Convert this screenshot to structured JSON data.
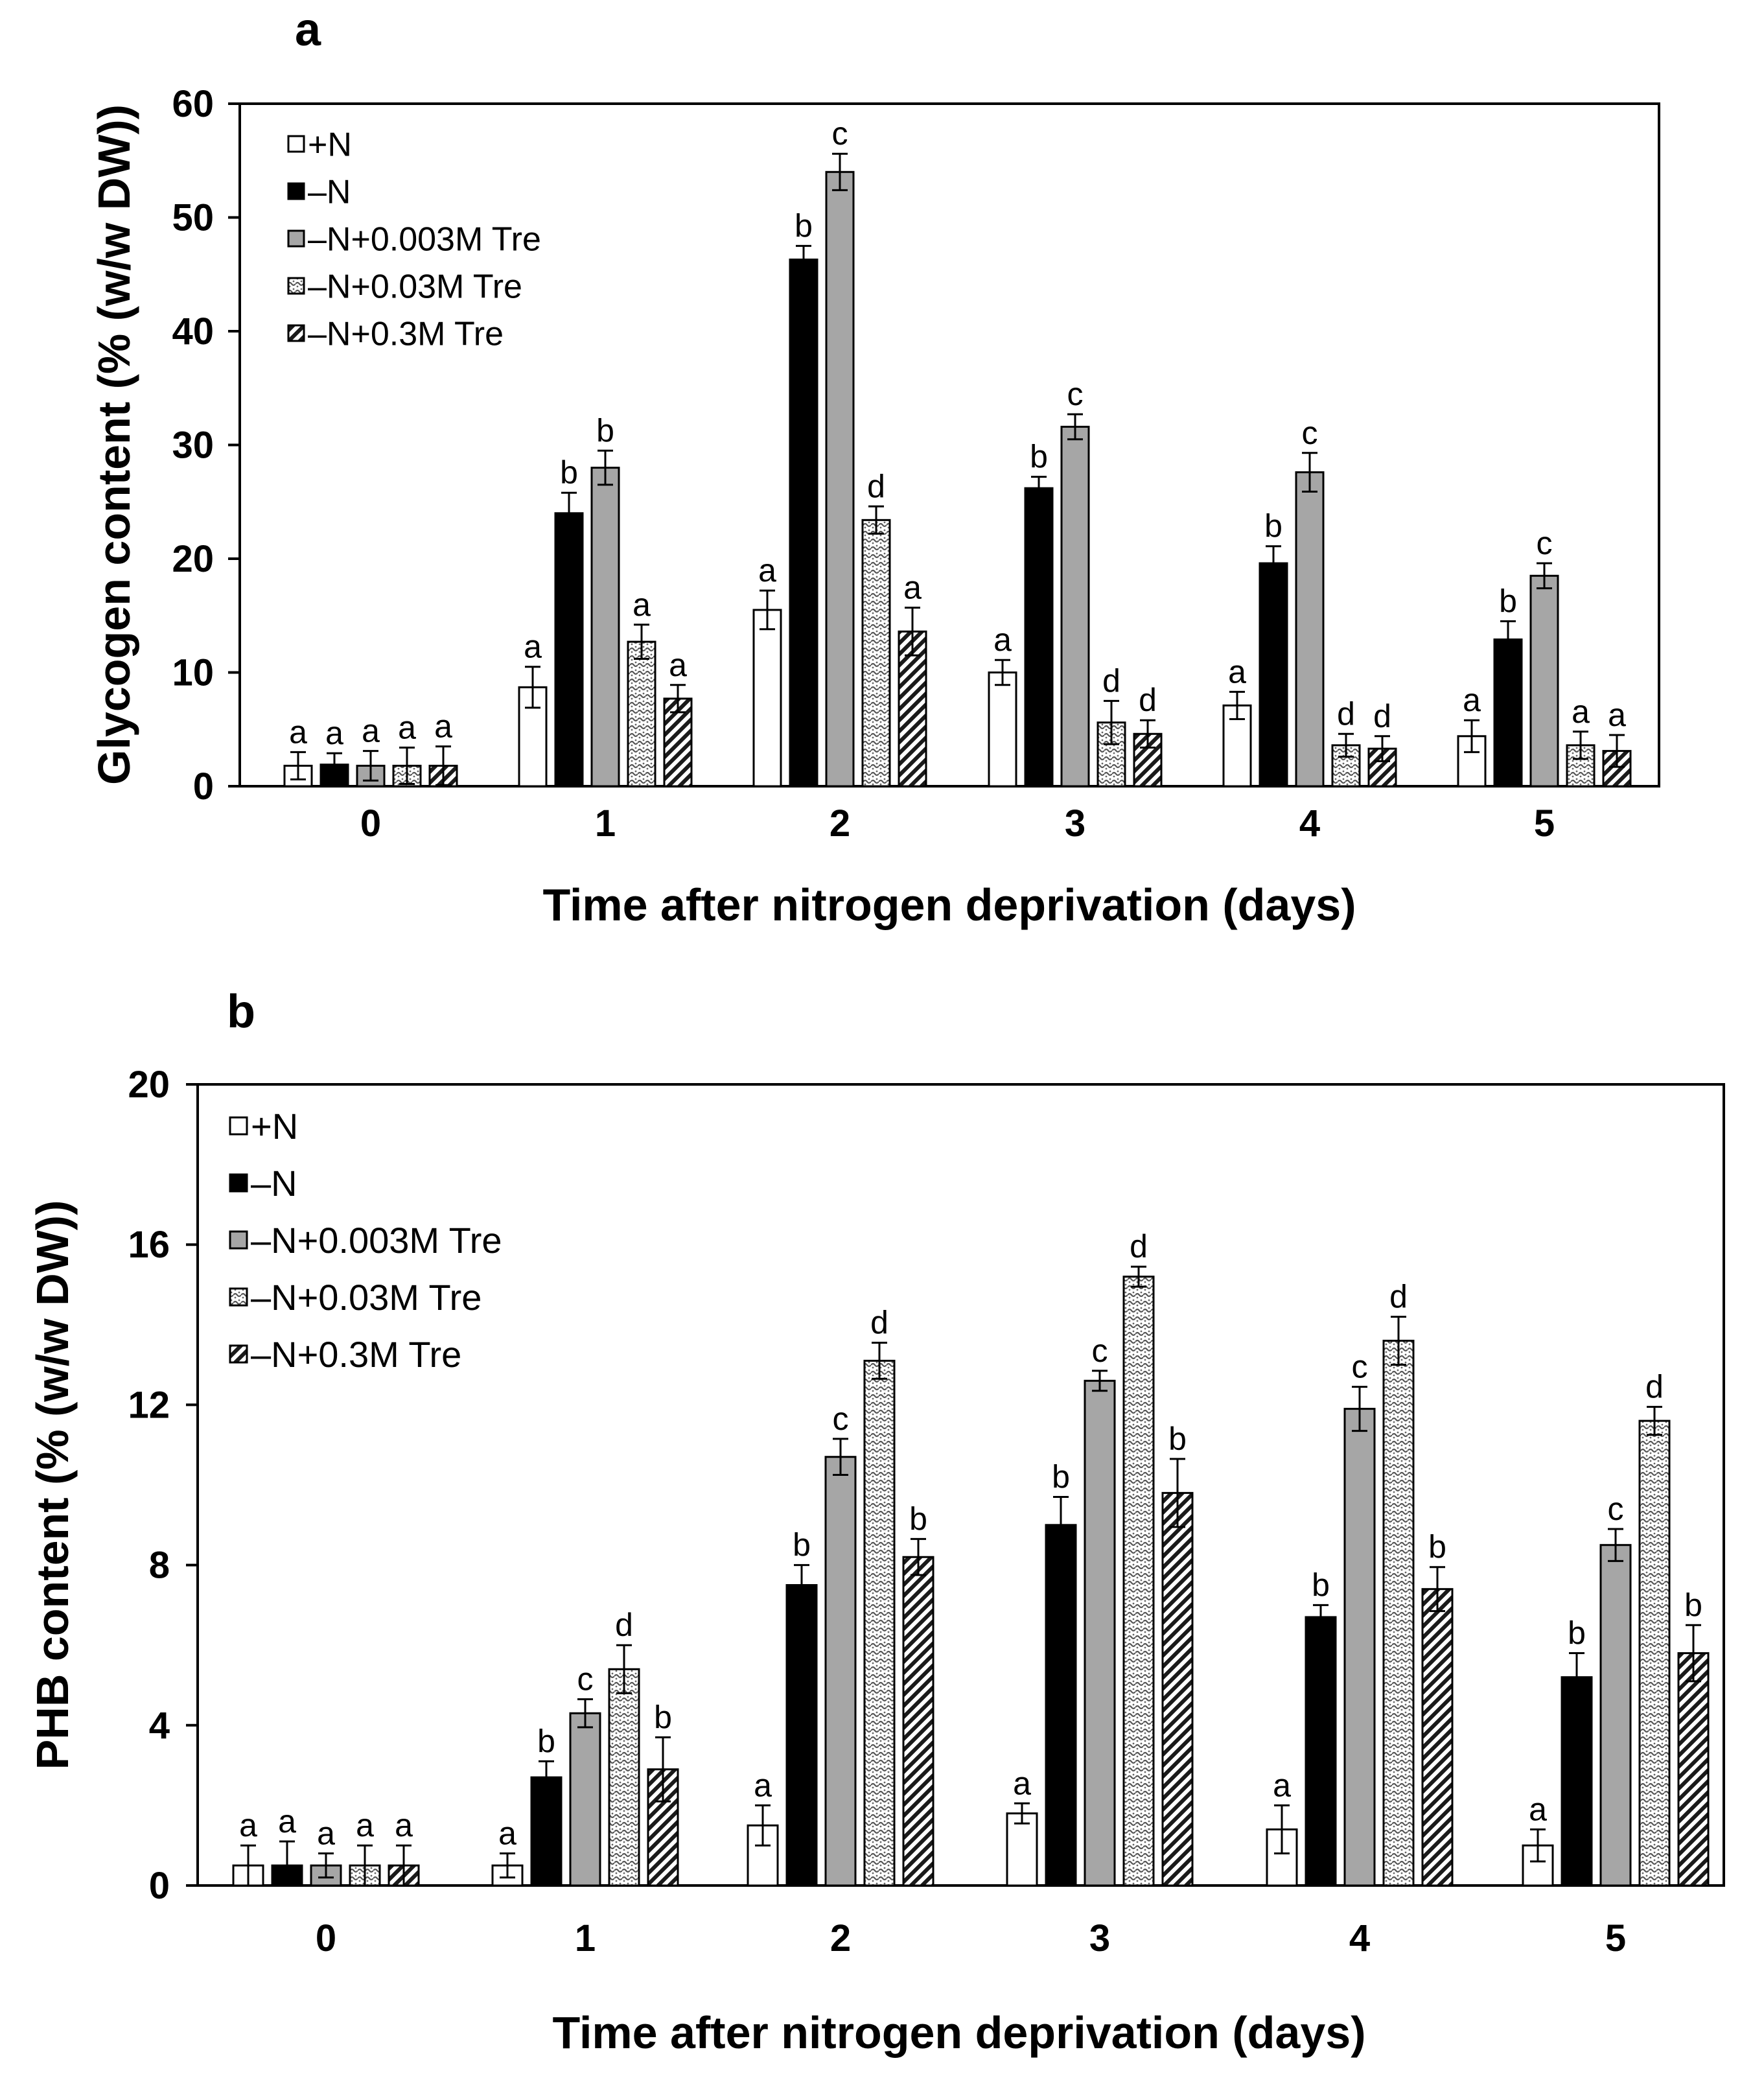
{
  "chart_data": [
    {
      "type": "bar",
      "panel": "a",
      "categories": [
        "0",
        "1",
        "2",
        "3",
        "4",
        "5"
      ],
      "xlabel": "Time after nitrogen deprivation (days)",
      "ylabel": "Glycogen content (% (w/w DW))",
      "ylim": [
        0,
        60
      ],
      "yticks": [
        "0",
        "10",
        "20",
        "30",
        "40",
        "50",
        "60"
      ],
      "grid": false,
      "legend_position": "top-left",
      "series": [
        {
          "name": "+N",
          "values": [
            1.8,
            8.7,
            15.5,
            10.0,
            7.1,
            4.4
          ],
          "errors": [
            1.2,
            1.8,
            1.7,
            1.1,
            1.2,
            1.4
          ],
          "labels": [
            "a",
            "a",
            "a",
            "a",
            "a",
            "a"
          ]
        },
        {
          "name": "–N",
          "values": [
            1.9,
            24.0,
            46.3,
            26.2,
            19.6,
            12.9
          ],
          "errors": [
            1.0,
            1.8,
            1.2,
            1.0,
            1.5,
            1.6
          ],
          "labels": [
            "a",
            "b",
            "b",
            "b",
            "b",
            "b"
          ]
        },
        {
          "name": "–N+0.003M Tre",
          "values": [
            1.8,
            28.0,
            54.0,
            31.6,
            27.6,
            18.5
          ],
          "errors": [
            1.3,
            1.5,
            1.6,
            1.1,
            1.7,
            1.1
          ],
          "labels": [
            "a",
            "b",
            "c",
            "c",
            "c",
            "c"
          ]
        },
        {
          "name": "–N+0.03M Tre",
          "values": [
            1.8,
            12.7,
            23.4,
            5.6,
            3.6,
            3.6
          ],
          "errors": [
            1.6,
            1.5,
            1.2,
            1.9,
            1.0,
            1.2
          ],
          "labels": [
            "a",
            "a",
            "d",
            "d",
            "d",
            "a"
          ]
        },
        {
          "name": "–N+0.3M Tre",
          "values": [
            1.8,
            7.7,
            13.6,
            4.6,
            3.3,
            3.1
          ],
          "errors": [
            1.7,
            1.2,
            2.1,
            1.2,
            1.1,
            1.4
          ],
          "labels": [
            "a",
            "a",
            "a",
            "d",
            "d",
            "a"
          ]
        }
      ]
    },
    {
      "type": "bar",
      "panel": "b",
      "categories": [
        "0",
        "1",
        "2",
        "3",
        "4",
        "5"
      ],
      "xlabel": "Time after nitrogen deprivation (days)",
      "ylabel": "PHB content (% (w/w DW))",
      "ylim": [
        0,
        20
      ],
      "yticks": [
        "0",
        "4",
        "8",
        "12",
        "16",
        "20"
      ],
      "grid": false,
      "legend_position": "top-left",
      "series": [
        {
          "name": "+N",
          "values": [
            0.5,
            0.5,
            1.5,
            1.8,
            1.4,
            1.0
          ],
          "errors": [
            0.5,
            0.3,
            0.5,
            0.25,
            0.6,
            0.4
          ],
          "labels": [
            "a",
            "a",
            "a",
            "a",
            "a",
            "a"
          ]
        },
        {
          "name": "–N",
          "values": [
            0.5,
            2.7,
            7.5,
            9.0,
            6.7,
            5.2
          ],
          "errors": [
            0.6,
            0.4,
            0.5,
            0.7,
            0.3,
            0.6
          ],
          "labels": [
            "a",
            "b",
            "b",
            "b",
            "b",
            "b"
          ]
        },
        {
          "name": "–N+0.003M Tre",
          "values": [
            0.5,
            4.3,
            10.7,
            12.6,
            11.9,
            8.5
          ],
          "errors": [
            0.3,
            0.35,
            0.45,
            0.25,
            0.55,
            0.4
          ],
          "labels": [
            "a",
            "c",
            "c",
            "c",
            "c",
            "c"
          ]
        },
        {
          "name": "–N+0.03M Tre",
          "values": [
            0.5,
            5.4,
            13.1,
            15.2,
            13.6,
            11.6
          ],
          "errors": [
            0.5,
            0.6,
            0.45,
            0.25,
            0.6,
            0.35
          ],
          "labels": [
            "a",
            "d",
            "d",
            "d",
            "d",
            "d"
          ]
        },
        {
          "name": "–N+0.3M Tre",
          "values": [
            0.5,
            2.9,
            8.2,
            9.8,
            7.4,
            5.8
          ],
          "errors": [
            0.5,
            0.8,
            0.45,
            0.85,
            0.55,
            0.7
          ],
          "labels": [
            "a",
            "b",
            "b",
            "b",
            "b",
            "b"
          ]
        }
      ]
    }
  ],
  "legend_swatch_colors": [
    "#ffffff",
    "#000000",
    "#a6a6a6",
    "pattern-dots",
    "pattern-diagonal"
  ]
}
